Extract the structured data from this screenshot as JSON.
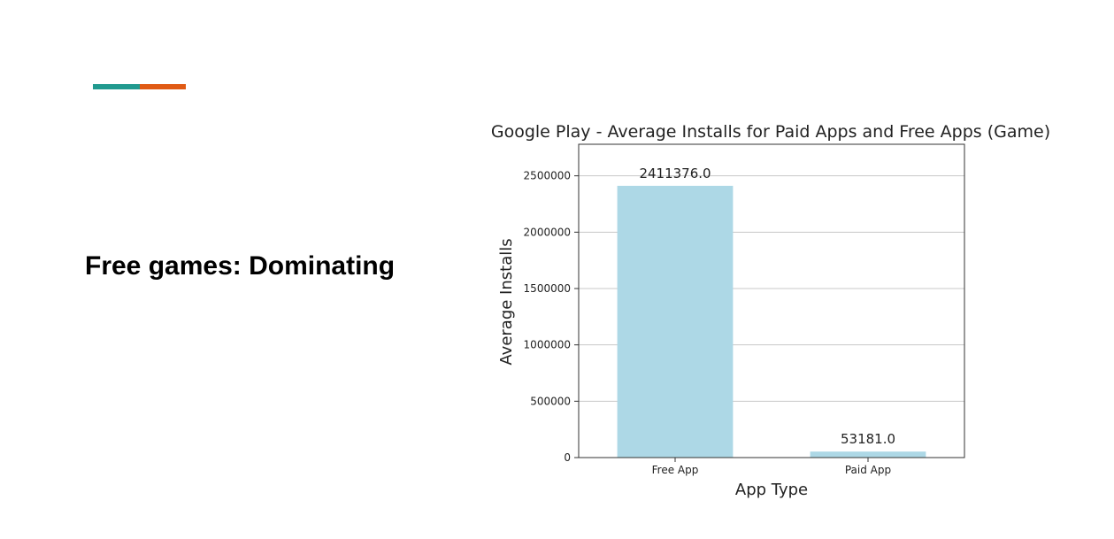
{
  "slide": {
    "heading": "Free games: Dominating",
    "accent_colors": [
      "#219a8f",
      "#e05a14"
    ]
  },
  "chart_data": {
    "type": "bar",
    "title": "Google Play - Average Installs for Paid Apps and Free Apps (Game)",
    "xlabel": "App Type",
    "ylabel": "Average Installs",
    "categories": [
      "Free App",
      "Paid App"
    ],
    "values": [
      2411376.0,
      53181.0
    ],
    "value_labels": [
      "2411376.0",
      "53181.0"
    ],
    "ylim": [
      0,
      2780000
    ],
    "yticks": [
      0,
      500000,
      1000000,
      1500000,
      2000000,
      2500000
    ],
    "ytick_labels": [
      "0",
      "500000",
      "1000000",
      "1500000",
      "2000000",
      "2500000"
    ],
    "grid": true,
    "bar_color": "#add8e6"
  }
}
